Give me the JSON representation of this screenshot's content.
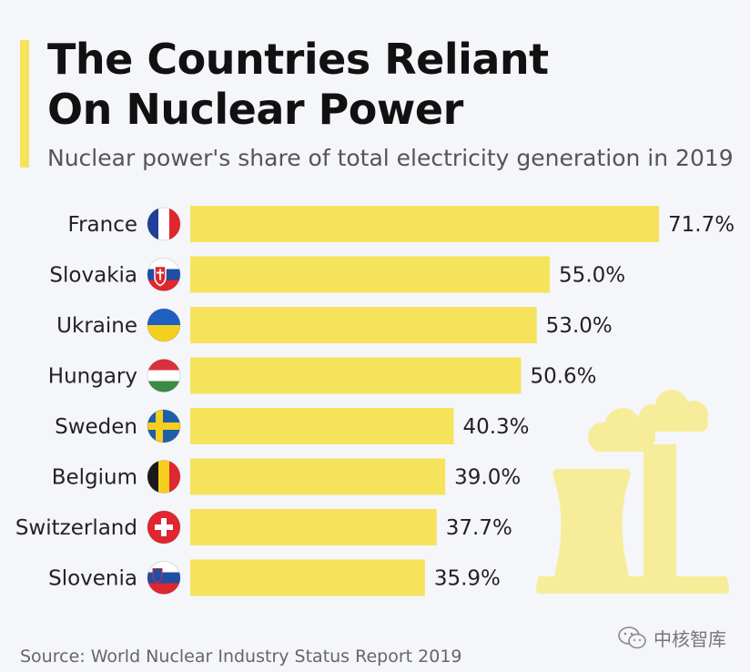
{
  "header": {
    "title_line1": "The Countries Reliant",
    "title_line2": "On Nuclear Power",
    "subtitle": "Nuclear power's share of total electricity generation in 2019"
  },
  "chart_data": {
    "type": "bar",
    "orientation": "horizontal",
    "title": "The Countries Reliant On Nuclear Power",
    "subtitle": "Nuclear power's share of total electricity generation in 2019",
    "categories": [
      "France",
      "Slovakia",
      "Ukraine",
      "Hungary",
      "Sweden",
      "Belgium",
      "Switzerland",
      "Slovenia"
    ],
    "values": [
      71.7,
      55.0,
      53.0,
      50.6,
      40.3,
      39.0,
      37.7,
      35.9
    ],
    "value_labels": [
      "71.7%",
      "55.0%",
      "53.0%",
      "50.6%",
      "40.3%",
      "39.0%",
      "37.7%",
      "35.9%"
    ],
    "unit": "%",
    "xlim": [
      0,
      71.7
    ],
    "grid": false,
    "bar_color": "#f5e35c"
  },
  "footer": {
    "source": "Source: World Nuclear Industry Status Report 2019",
    "watermark": "中核智库"
  },
  "colors": {
    "accent": "#f5e35c",
    "background": "#f5f6f9",
    "illustration": "#f7ec99"
  },
  "icons": {
    "flags": [
      "flag-france-icon",
      "flag-slovakia-icon",
      "flag-ukraine-icon",
      "flag-hungary-icon",
      "flag-sweden-icon",
      "flag-belgium-icon",
      "flag-switzerland-icon",
      "flag-slovenia-icon"
    ],
    "illustration": "nuclear-plant-cooling-towers-illustration",
    "watermark": "wechat-icon"
  }
}
